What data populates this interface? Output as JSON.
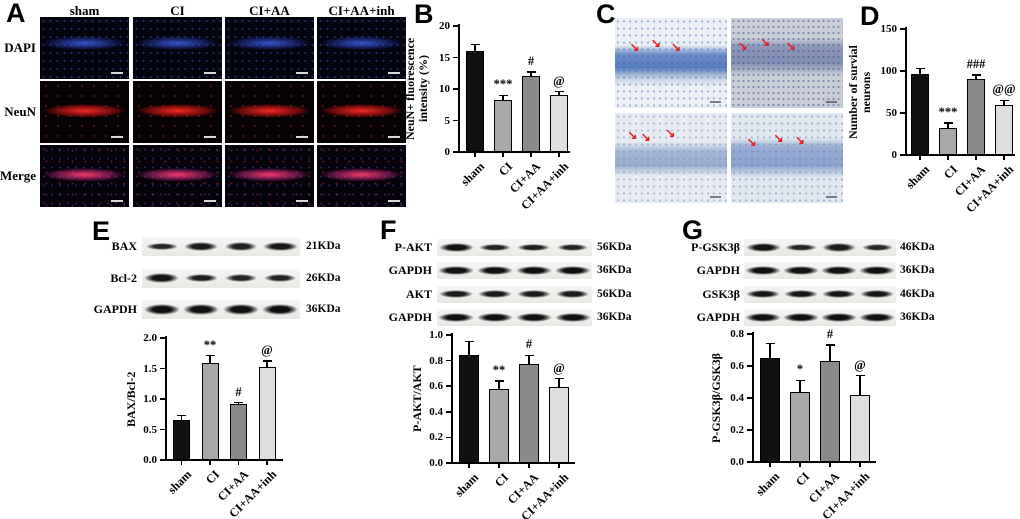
{
  "panel_a": {
    "label": "A",
    "column_headers": [
      "sham",
      "CI",
      "CI+AA",
      "CI+AA+inh"
    ],
    "row_labels": [
      "DAPI",
      "NeuN",
      "Merge"
    ]
  },
  "panel_b": {
    "label": "B"
  },
  "panel_c": {
    "label": "C",
    "arrow_icon": "↘",
    "arrow_color": "#e02020"
  },
  "panel_d": {
    "label": "D"
  },
  "panel_e": {
    "label": "E",
    "blot_rows": [
      {
        "protein": "BAX",
        "kda": "21KDa",
        "bands": [
          0.55,
          0.8,
          0.65,
          0.85
        ]
      },
      {
        "protein": "Bcl-2",
        "kda": "26KDa",
        "bands": [
          0.9,
          0.7,
          0.55,
          0.6
        ]
      },
      {
        "protein": "GAPDH",
        "kda": "36KDa",
        "bands": [
          1,
          1,
          1,
          1
        ]
      }
    ]
  },
  "panel_f": {
    "label": "F",
    "blot_rows": [
      {
        "protein": "P-AKT",
        "kda": "56KDa",
        "bands": [
          0.95,
          0.6,
          0.7,
          0.55
        ]
      },
      {
        "protein": "GAPDH",
        "kda": "36KDa",
        "bands": [
          1,
          1,
          1,
          1
        ]
      },
      {
        "protein": "AKT",
        "kda": "56KDa",
        "bands": [
          0.8,
          0.8,
          0.75,
          0.75
        ]
      },
      {
        "protein": "GAPDH",
        "kda": "36KDa",
        "bands": [
          1,
          1,
          1,
          1
        ]
      }
    ]
  },
  "panel_g": {
    "label": "G",
    "blot_rows": [
      {
        "protein": "P-GSK3β",
        "kda": "46KDa",
        "bands": [
          0.9,
          0.55,
          0.75,
          0.5
        ]
      },
      {
        "protein": "GAPDH",
        "kda": "36KDa",
        "bands": [
          1,
          1,
          1,
          1
        ]
      },
      {
        "protein": "GSK3β",
        "kda": "46KDa",
        "bands": [
          0.85,
          0.85,
          0.85,
          0.85
        ]
      },
      {
        "protein": "GAPDH",
        "kda": "36KDa",
        "bands": [
          1,
          1,
          1,
          1
        ]
      }
    ]
  },
  "bar_colors": [
    "#111111",
    "#a8a8a8",
    "#8a8a8a",
    "#dedede"
  ],
  "chart_data": [
    {
      "id": "B",
      "type": "bar",
      "categories": [
        "sham",
        "CI",
        "CI+AA",
        "CI+AA+inh"
      ],
      "values": [
        16,
        8.3,
        12,
        9.1
      ],
      "errors": [
        1.1,
        0.7,
        0.7,
        0.5
      ],
      "annotations": [
        "",
        "***",
        "#",
        "@"
      ],
      "ylabel": "NeuN+ fluorescence\nintensity (%)",
      "xlabel": "",
      "ylim": [
        0,
        20
      ],
      "ytick_step": 5,
      "decimals": 0
    },
    {
      "id": "D",
      "type": "bar",
      "categories": [
        "sham",
        "CI",
        "CI+AA",
        "CI+AA+inh"
      ],
      "values": [
        97,
        32,
        91,
        59
      ],
      "errors": [
        6,
        6,
        4,
        6
      ],
      "annotations": [
        "",
        "***",
        "###",
        "@@"
      ],
      "ylabel": "Number of survial\nneurons",
      "xlabel": "",
      "ylim": [
        0,
        150
      ],
      "ytick_step": 50,
      "decimals": 0
    },
    {
      "id": "E",
      "type": "bar",
      "categories": [
        "sham",
        "CI",
        "CI+AA",
        "CI+AA+inh"
      ],
      "values": [
        0.66,
        1.59,
        0.91,
        1.52
      ],
      "errors": [
        0.07,
        0.12,
        0.03,
        0.1
      ],
      "annotations": [
        "",
        "**",
        "#",
        "@"
      ],
      "ylabel": "BAX/Bcl-2",
      "xlabel": "",
      "ylim": [
        0,
        2
      ],
      "ytick_step": 0.5,
      "decimals": 1
    },
    {
      "id": "F",
      "type": "bar",
      "categories": [
        "sham",
        "CI",
        "CI+AA",
        "CI+AA+inh"
      ],
      "values": [
        0.84,
        0.58,
        0.77,
        0.59
      ],
      "errors": [
        0.11,
        0.06,
        0.07,
        0.07
      ],
      "annotations": [
        "",
        "**",
        "#",
        "@"
      ],
      "ylabel": "P-AKT/AKT",
      "xlabel": "",
      "ylim": [
        0,
        1
      ],
      "ytick_step": 0.2,
      "decimals": 1
    },
    {
      "id": "G",
      "type": "bar",
      "categories": [
        "sham",
        "CI",
        "CI+AA",
        "CI+AA+inh"
      ],
      "values": [
        0.65,
        0.44,
        0.63,
        0.42
      ],
      "errors": [
        0.09,
        0.07,
        0.1,
        0.12
      ],
      "annotations": [
        "",
        "*",
        "#",
        "@"
      ],
      "ylabel": "P-GSK3β/GSK3β",
      "xlabel": "",
      "ylim": [
        0,
        0.8
      ],
      "ytick_step": 0.2,
      "decimals": 1
    }
  ]
}
